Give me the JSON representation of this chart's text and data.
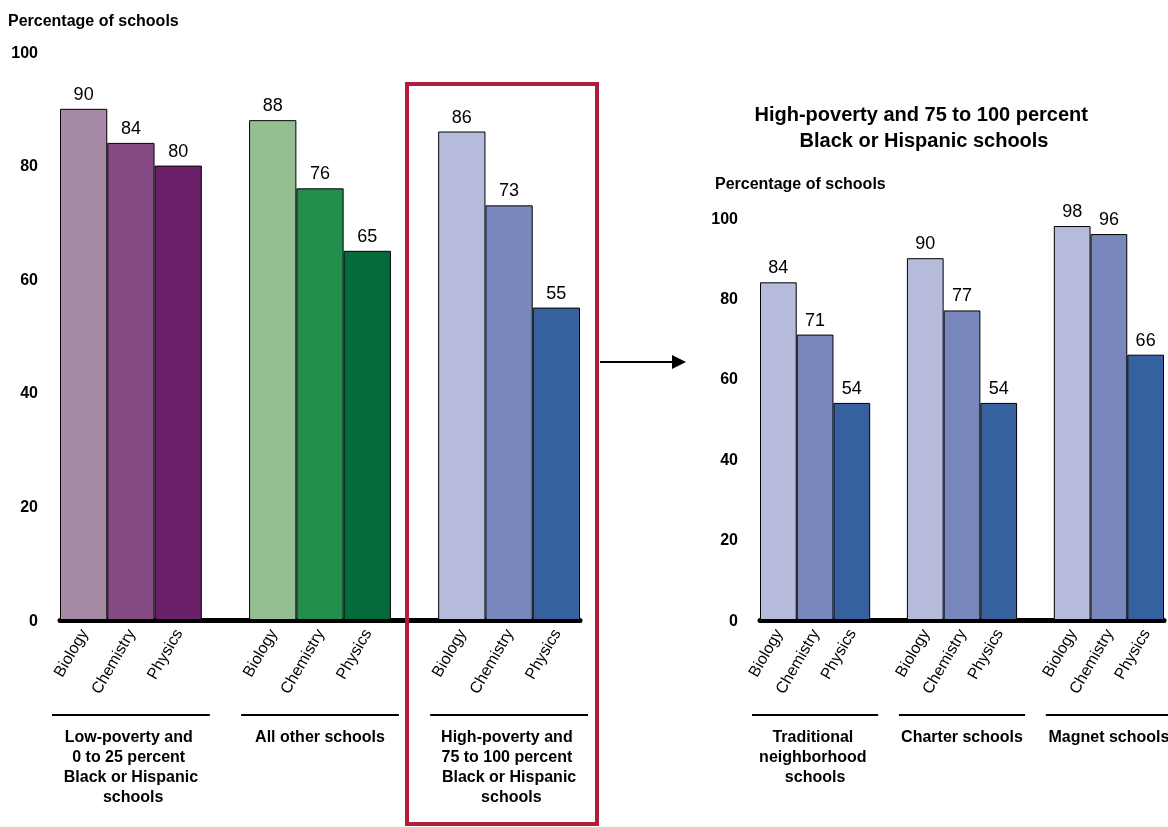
{
  "chart_data": [
    {
      "type": "bar",
      "ylabel": "Percentage of schools",
      "categories": [
        "Biology",
        "Chemistry",
        "Physics",
        null,
        "Biology",
        "Chemistry",
        "Physics",
        null,
        "Biology",
        "Chemistry",
        "Physics"
      ],
      "values": [
        90,
        84,
        80,
        null,
        88,
        76,
        65,
        null,
        86,
        73,
        55
      ],
      "colors": [
        "#a78aa6",
        "#864b85",
        "#6a2169",
        null,
        "#93bf93",
        "#218e4c",
        "#036c3a",
        null,
        "#b6bbdc",
        "#7888bd",
        "#36609e"
      ],
      "ylim": [
        0,
        100
      ],
      "yticks": [
        0,
        20,
        40,
        60,
        80,
        100
      ],
      "data_labels": true,
      "annotations": [
        "Low-poverty and 0 to 25 percent Black or Hispanic schools",
        "All other schools",
        "High-poverty and 75 to 100 percent Black or Hispanic schools"
      ]
    },
    {
      "type": "bar",
      "title": "High-poverty and 75 to 100 percent Black or Hispanic schools",
      "ylabel": "Percentage of schools",
      "categories": [
        "Biology",
        "Chemistry",
        "Physics",
        null,
        "Biology",
        "Chemistry",
        "Physics",
        null,
        "Biology",
        "Chemistry",
        "Physics"
      ],
      "values": [
        84,
        71,
        54,
        null,
        90,
        77,
        54,
        null,
        98,
        96,
        66
      ],
      "colors": [
        "#b6bbdc",
        "#7888bd",
        "#36609e",
        null,
        "#b6bbdc",
        "#7888bd",
        "#36609e",
        null,
        "#b6bbdc",
        "#7888bd",
        "#36609e"
      ],
      "ylim": [
        0,
        100
      ],
      "yticks": [
        0,
        20,
        40,
        60,
        80,
        100
      ],
      "data_labels": true,
      "annotations": [
        "Traditional neighborhood schools",
        "Charter schools",
        "Magnet schools"
      ]
    }
  ]
}
